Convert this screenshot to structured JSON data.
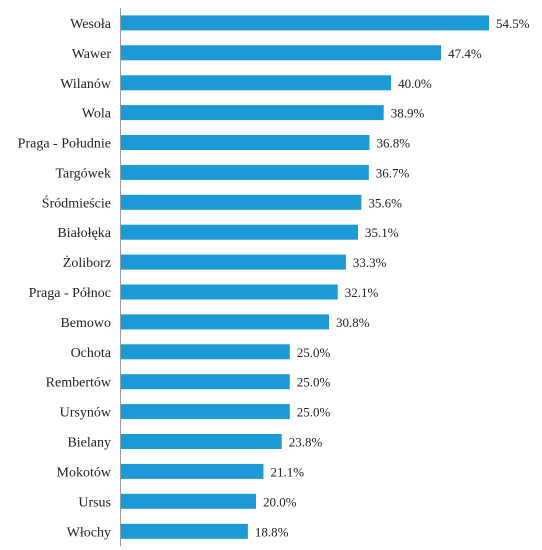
{
  "chart_data": {
    "type": "bar",
    "orientation": "horizontal",
    "categories": [
      "Wesoła",
      "Wawer",
      "Wilanów",
      "Wola",
      "Praga - Południe",
      "Targówek",
      "Śródmieście",
      "Białołęka",
      "Żoliborz",
      "Praga - Północ",
      "Bemowo",
      "Ochota",
      "Rembertów",
      "Ursynów",
      "Bielany",
      "Mokotów",
      "Ursus",
      "Włochy"
    ],
    "values": [
      54.5,
      47.4,
      40.0,
      38.9,
      36.8,
      36.7,
      35.6,
      35.1,
      33.3,
      32.1,
      30.8,
      25.0,
      25.0,
      25.0,
      23.8,
      21.1,
      20.0,
      18.8
    ],
    "value_labels": [
      "54.5%",
      "47.4%",
      "40.0%",
      "38.9%",
      "36.8%",
      "36.7%",
      "35.6%",
      "35.1%",
      "33.3%",
      "32.1%",
      "30.8%",
      "25.0%",
      "25.0%",
      "25.0%",
      "23.8%",
      "21.1%",
      "20.0%",
      "18.8%"
    ],
    "xlim": [
      0,
      60
    ],
    "bar_color": "#1b9ad6",
    "grid": false,
    "title": "",
    "xlabel": "",
    "ylabel": ""
  }
}
